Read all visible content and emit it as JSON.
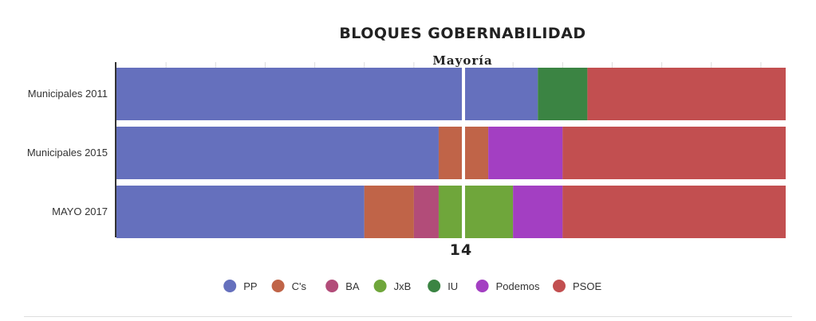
{
  "chart_data": {
    "type": "bar",
    "orientation": "horizontal",
    "stacked": true,
    "title": "BLOQUES GOBERNABILIDAD",
    "reference_line": {
      "label": "Mayoría",
      "value": 14,
      "value_label": "14"
    },
    "xlim": [
      0,
      27
    ],
    "grid": true,
    "legend_position": "bottom",
    "categories": [
      "Municipales 2011",
      "Municipales 2015",
      "MAYO 2017"
    ],
    "series": [
      {
        "name": "PP",
        "color": "#6570bd",
        "values": [
          17,
          13,
          10
        ]
      },
      {
        "name": "C's",
        "color": "#c06448",
        "values": [
          0,
          2,
          2
        ]
      },
      {
        "name": "BA",
        "color": "#b24c79",
        "values": [
          0,
          0,
          1
        ]
      },
      {
        "name": "JxB",
        "color": "#6fa63b",
        "values": [
          0,
          0,
          3
        ]
      },
      {
        "name": "IU",
        "color": "#3b8443",
        "values": [
          2,
          0,
          0
        ]
      },
      {
        "name": "Podemos",
        "color": "#a33fc2",
        "values": [
          0,
          3,
          2
        ]
      },
      {
        "name": "PSOE",
        "color": "#c24f50",
        "values": [
          8,
          9,
          9
        ]
      }
    ]
  }
}
